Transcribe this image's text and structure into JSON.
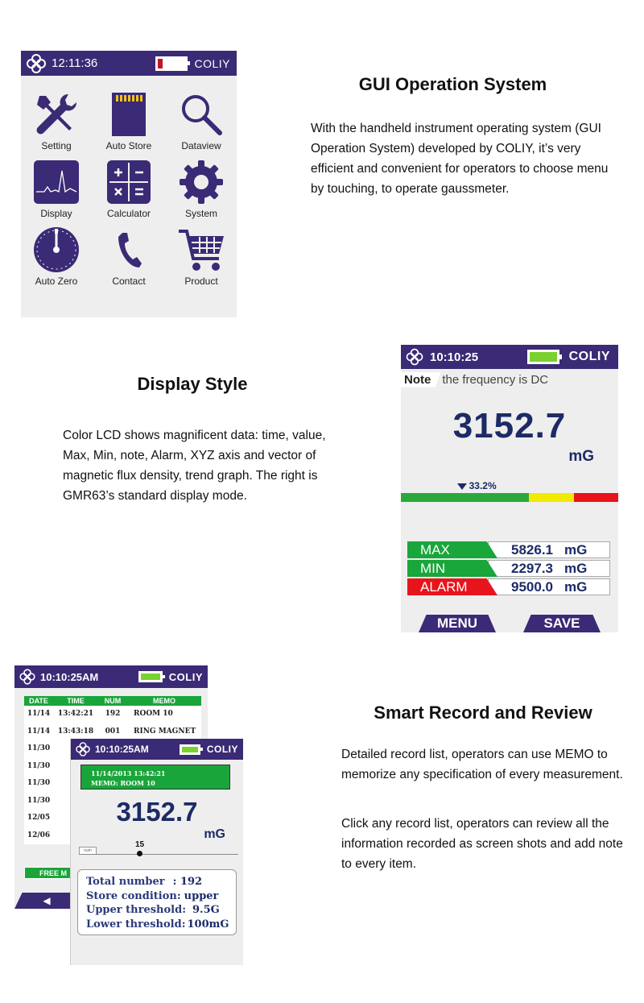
{
  "section1": {
    "title": "GUI Operation System",
    "text": "With the handheld instrument operating system (GUI Operation System) developed by COLIY, it’s very efficient and convenient for operators to choose menu by touching, to operate gaussmeter.",
    "screen": {
      "time": "12:11:36",
      "brand": "COLIY",
      "menu_items": [
        {
          "label": "Setting",
          "icon": "wrench-screwdriver-icon"
        },
        {
          "label": "Auto Store",
          "icon": "sd-card-icon"
        },
        {
          "label": "Dataview",
          "icon": "magnifier-icon"
        },
        {
          "label": "Display",
          "icon": "waveform-icon"
        },
        {
          "label": "Calculator",
          "icon": "calculator-icon"
        },
        {
          "label": "System",
          "icon": "gear-icon"
        },
        {
          "label": "Auto Zero",
          "icon": "dial-icon"
        },
        {
          "label": "Contact",
          "icon": "phone-icon"
        },
        {
          "label": "Product",
          "icon": "cart-icon"
        }
      ],
      "colors": {
        "header": "#3b2a75",
        "icon": "#3b2a75",
        "battery_low": "#c0142c"
      }
    }
  },
  "section2": {
    "title": "Display Style",
    "text": "Color LCD shows magnificent data: time, value, Max, Min, note, Alarm, XYZ axis and vector of magnetic flux density, trend graph. The right is GMR63’s standard display mode.",
    "screen": {
      "time": "10:10:25",
      "brand": "COLIY",
      "note_label": "Note",
      "note_text": "the frequency is DC",
      "value": "3152.7",
      "unit": "mG",
      "percent_label": "33.2%",
      "percent": 33.2,
      "gauge_colors": [
        "#2aa83c",
        "#f3ea00",
        "#e8141b"
      ],
      "stats": [
        {
          "name": "MAX",
          "value": "5826.1",
          "unit": "mG",
          "color": "#19a63a"
        },
        {
          "name": "MIN",
          "value": "2297.3",
          "unit": "mG",
          "color": "#19a63a"
        },
        {
          "name": "ALARM",
          "value": "9500.0",
          "unit": "mG",
          "color": "#e8141b"
        }
      ],
      "menu_button": "MENU",
      "save_button": "SAVE"
    }
  },
  "section3": {
    "title": "Smart Record and Review",
    "text1": "Detailed record list, operators can use MEMO to memorize any specification of every measurement.",
    "text2": "Click any record list, operators can review all the information recorded as screen shots and add note to every item.",
    "list_screen": {
      "time": "10:10:25AM",
      "brand": "COLIY",
      "headers": [
        "DATE",
        "TIME",
        "NUM",
        "MEMO"
      ],
      "rows": [
        [
          "11/14",
          "13:42:21",
          "192",
          "ROOM 10"
        ],
        [
          "11/14",
          "13:43:18",
          "001",
          "RING MAGNET"
        ],
        [
          "11/30",
          "1",
          "",
          ""
        ],
        [
          "11/30",
          "1",
          "",
          ""
        ],
        [
          "11/30",
          "1",
          "",
          ""
        ],
        [
          "11/30",
          "1",
          "",
          ""
        ],
        [
          "12/05",
          "1",
          "",
          ""
        ],
        [
          "12/06",
          "0",
          "",
          ""
        ]
      ],
      "free_button": "FREE M",
      "back_button": "◀"
    },
    "detail_screen": {
      "time": "10:10:25AM",
      "brand": "COLIY",
      "memo_line1": "11/14/2013   13:42:21",
      "memo_line2": "MEMO: ROOM 10",
      "value": "3152.7",
      "unit": "mG",
      "tab_label": "num",
      "marker": "15",
      "info": [
        {
          "key": "Total number",
          "value": ": 192"
        },
        {
          "key": "Store condition:",
          "value": "upper"
        },
        {
          "key": "Upper threshold:",
          "value": "9.5G"
        },
        {
          "key": "Lower threshold:",
          "value": "100mG"
        }
      ]
    }
  }
}
